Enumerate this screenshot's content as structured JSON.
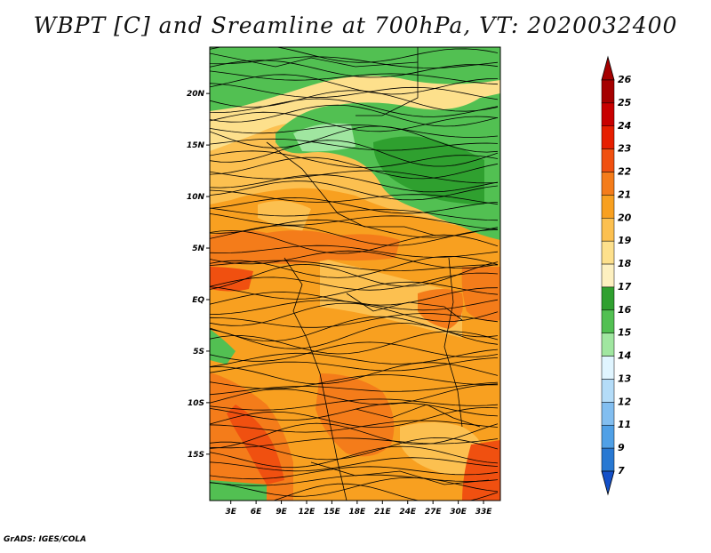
{
  "title": "WBPT [C] and Sreamline at 700hPa, VT: 2020032400",
  "credit": "GrADS: IGES/COLA",
  "map": {
    "lat_labels": [
      "20N",
      "15N",
      "10N",
      "5N",
      "EQ",
      "5S",
      "10S",
      "15S"
    ],
    "lat_values": [
      20,
      15,
      10,
      5,
      0,
      -5,
      -10,
      -15
    ],
    "lon_labels": [
      "3E",
      "6E",
      "9E",
      "12E",
      "15E",
      "18E",
      "21E",
      "24E",
      "27E",
      "30E",
      "33E"
    ],
    "lon_values": [
      3,
      6,
      9,
      12,
      15,
      18,
      21,
      24,
      27,
      30,
      33
    ],
    "lon_range": [
      0.5,
      35
    ],
    "lat_range": [
      -19.5,
      24.5
    ]
  },
  "colorbar": {
    "labels": [
      "26",
      "25",
      "24",
      "23",
      "22",
      "21",
      "20",
      "19",
      "18",
      "17",
      "16",
      "15",
      "14",
      "13",
      "12",
      "11",
      "9",
      "7"
    ],
    "colors": [
      "#a50000",
      "#c80000",
      "#e61e00",
      "#f05010",
      "#f47c1a",
      "#f8a020",
      "#fcc050",
      "#fde08c",
      "#fdf0c0",
      "#2fa02f",
      "#52c052",
      "#a0e6a0",
      "#e0f5ff",
      "#b4dcf8",
      "#82bef0",
      "#50a0e6",
      "#2878d2",
      "#1450c8"
    ],
    "top_triangle_color": "#a50000",
    "bottom_triangle_color": "#1450c8"
  }
}
